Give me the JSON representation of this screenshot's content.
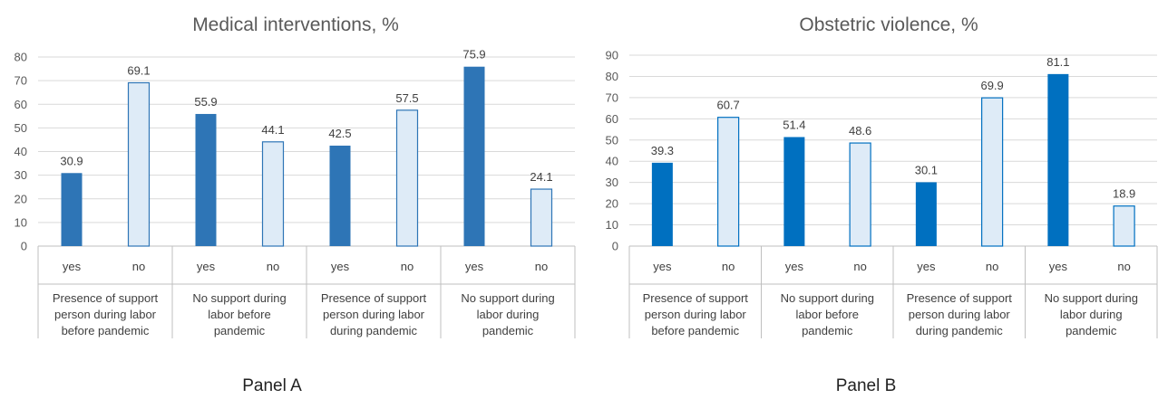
{
  "chart_data": [
    {
      "type": "bar",
      "title": "Medical interventions, %",
      "panel_label": "Panel A",
      "ylim": [
        0,
        80
      ],
      "yticks": [
        0,
        10,
        20,
        30,
        40,
        50,
        60,
        70,
        80
      ],
      "groups": [
        "Presence of support person during labor before pandemic",
        "No support during labor before pandemic",
        "Presence of support person during labor during pandemic",
        "No support during labor during pandemic"
      ],
      "group_lines": [
        [
          "Presence of support",
          "person during labor",
          "before pandemic"
        ],
        [
          "No support during",
          "labor before",
          "pandemic"
        ],
        [
          "Presence of support",
          "person during labor",
          "during pandemic"
        ],
        [
          "No support during",
          "labor during",
          "pandemic"
        ]
      ],
      "categories": [
        "yes",
        "no"
      ],
      "values": [
        [
          30.9,
          69.1
        ],
        [
          55.9,
          44.1
        ],
        [
          42.5,
          57.5
        ],
        [
          75.9,
          24.1
        ]
      ],
      "colors": {
        "yes": "#2e75b6",
        "no": "#deebf7",
        "no_border": "#2e75b6"
      },
      "grid": true,
      "legend": "none"
    },
    {
      "type": "bar",
      "title": "Obstetric violence, %",
      "panel_label": "Panel B",
      "ylim": [
        0,
        90
      ],
      "yticks": [
        0,
        10,
        20,
        30,
        40,
        50,
        60,
        70,
        80,
        90
      ],
      "groups": [
        "Presence of support person during labor before pandemic",
        "No support during labor before pandemic",
        "Presence of support person during labor during pandemic",
        "No support during labor during pandemic"
      ],
      "group_lines": [
        [
          "Presence of support",
          "person during labor",
          "before pandemic"
        ],
        [
          "No support during",
          "labor before",
          "pandemic"
        ],
        [
          "Presence of support",
          "person during labor",
          "during pandemic"
        ],
        [
          "No support during",
          "labor during",
          "pandemic"
        ]
      ],
      "categories": [
        "yes",
        "no"
      ],
      "values": [
        [
          39.3,
          60.7
        ],
        [
          51.4,
          48.6
        ],
        [
          30.1,
          69.9
        ],
        [
          81.1,
          18.9
        ]
      ],
      "colors": {
        "yes": "#0070c0",
        "no": "#deebf7",
        "no_border": "#0070c0"
      },
      "grid": true,
      "legend": "none"
    }
  ]
}
